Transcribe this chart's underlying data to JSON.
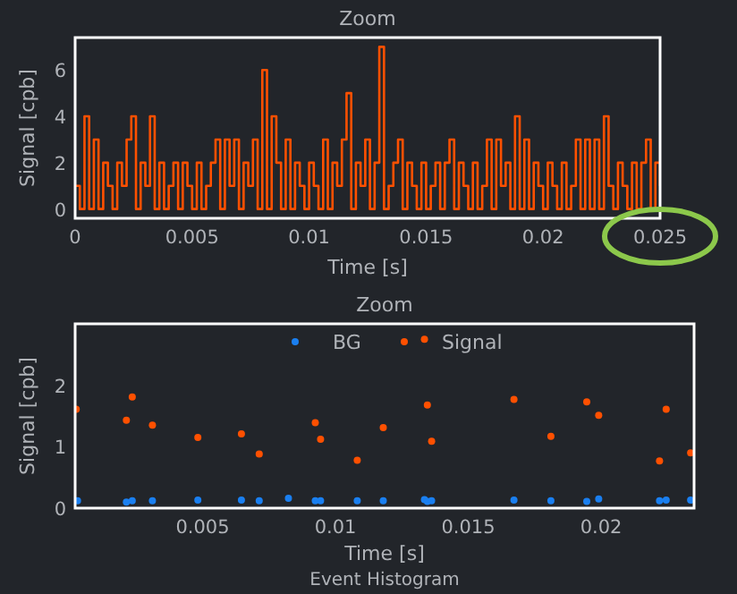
{
  "chart_data": [
    {
      "type": "step",
      "title": "Zoom",
      "xlabel": "Time [s]",
      "ylabel": "Signal [cpb]",
      "color": "#ff5000",
      "xlim": [
        0,
        0.025
      ],
      "xticks": [
        0,
        0.005,
        0.01,
        0.015,
        0.02,
        0.025
      ],
      "ylim": [
        -0.4,
        7.4
      ],
      "yticks": [
        0,
        2,
        4,
        6
      ],
      "grid": false,
      "x": [
        0,
        0.0002,
        0.0004,
        0.0006,
        0.0008,
        0.001,
        0.0012,
        0.0014,
        0.0016,
        0.0018,
        0.002,
        0.0022,
        0.0024,
        0.0026,
        0.0028,
        0.003,
        0.0032,
        0.0034,
        0.0036,
        0.0038,
        0.004,
        0.0042,
        0.0044,
        0.0046,
        0.0048,
        0.005,
        0.0052,
        0.0054,
        0.0056,
        0.0058,
        0.006,
        0.0062,
        0.0064,
        0.0066,
        0.0068,
        0.007,
        0.0072,
        0.0074,
        0.0076,
        0.0078,
        0.008,
        0.0082,
        0.0084,
        0.0086,
        0.0088,
        0.009,
        0.0092,
        0.0094,
        0.0096,
        0.0098,
        0.01,
        0.0102,
        0.0104,
        0.0106,
        0.0108,
        0.011,
        0.0112,
        0.0114,
        0.0116,
        0.0118,
        0.012,
        0.0122,
        0.0124,
        0.0126,
        0.0128,
        0.013,
        0.0132,
        0.0134,
        0.0136,
        0.0138,
        0.014,
        0.0142,
        0.0144,
        0.0146,
        0.0148,
        0.015,
        0.0152,
        0.0154,
        0.0156,
        0.0158,
        0.016,
        0.0162,
        0.0164,
        0.0166,
        0.0168,
        0.017,
        0.0172,
        0.0174,
        0.0176,
        0.0178,
        0.018,
        0.0182,
        0.0184,
        0.0186,
        0.0188,
        0.019,
        0.0192,
        0.0194,
        0.0196,
        0.0198,
        0.02,
        0.0202,
        0.0204,
        0.0206,
        0.0208,
        0.021,
        0.0212,
        0.0214,
        0.0216,
        0.0218,
        0.022,
        0.0222,
        0.0224,
        0.0226,
        0.0228,
        0.023,
        0.0232,
        0.0234,
        0.0236,
        0.0238,
        0.024,
        0.0242,
        0.0244,
        0.0246,
        0.0248,
        0.025
      ],
      "values": [
        1,
        0,
        4,
        0,
        3,
        0,
        2,
        1,
        0,
        2,
        1,
        3,
        4,
        0,
        2,
        1,
        4,
        0,
        2,
        0,
        1,
        2,
        0,
        2,
        1,
        0,
        2,
        0,
        1,
        2,
        3,
        0,
        3,
        1,
        3,
        0,
        2,
        1,
        3,
        0,
        6,
        0,
        4,
        2,
        0,
        3,
        0,
        2,
        1,
        0,
        2,
        1,
        0,
        3,
        0,
        2,
        1,
        3,
        5,
        0,
        2,
        1,
        3,
        0,
        2,
        7,
        0,
        1,
        2,
        3,
        0,
        2,
        1,
        0,
        2,
        0,
        1,
        2,
        0,
        2,
        3,
        0,
        2,
        1,
        0,
        2,
        0,
        1,
        3,
        0,
        3,
        1,
        2,
        0,
        4,
        0,
        3,
        0,
        2,
        1,
        0,
        2,
        1,
        0,
        2,
        0,
        1,
        3,
        0,
        3,
        0,
        3,
        0,
        4,
        1,
        0,
        2,
        1,
        0,
        2,
        0,
        2,
        3,
        0,
        2,
        1
      ]
    },
    {
      "type": "scatter",
      "title": "Zoom",
      "xlabel": "Time [s]",
      "ylabel": "Signal [cpb]",
      "xlim": [
        0.0002,
        0.0235
      ],
      "xticks": [
        0.005,
        0.01,
        0.015,
        0.02
      ],
      "ylim": [
        0,
        3
      ],
      "yticks": [
        0,
        1,
        2
      ],
      "grid": false,
      "legend": "top",
      "marker": "circle",
      "annotations": [
        "Event Histogram"
      ],
      "series": [
        {
          "name": "BG",
          "color": "#1a7ff0",
          "x": [
            0.00029,
            0.00213,
            0.00235,
            0.00311,
            0.00482,
            0.00646,
            0.00713,
            0.00823,
            0.00924,
            0.00944,
            0.01082,
            0.0118,
            0.01335,
            0.01346,
            0.01362,
            0.01672,
            0.01811,
            0.01946,
            0.01991,
            0.0222,
            0.02245,
            0.02337
          ],
          "values": [
            0.12,
            0.1,
            0.12,
            0.12,
            0.13,
            0.13,
            0.12,
            0.16,
            0.12,
            0.12,
            0.12,
            0.12,
            0.14,
            0.11,
            0.12,
            0.13,
            0.12,
            0.11,
            0.15,
            0.12,
            0.13,
            0.13
          ]
        },
        {
          "name": "Signal",
          "color": "#ff5000",
          "x": [
            0.00024,
            0.00213,
            0.00235,
            0.00311,
            0.00482,
            0.00646,
            0.00713,
            0.00924,
            0.00944,
            0.01082,
            0.0118,
            0.01335,
            0.01346,
            0.01362,
            0.01672,
            0.01811,
            0.01946,
            0.01991,
            0.0222,
            0.02245,
            0.02337
          ],
          "values": [
            1.61,
            1.43,
            1.81,
            1.35,
            1.15,
            1.21,
            0.88,
            1.39,
            1.12,
            0.78,
            1.31,
            2.75,
            1.68,
            1.09,
            1.77,
            1.17,
            1.73,
            1.51,
            0.77,
            1.61,
            0.9
          ]
        }
      ]
    }
  ]
}
